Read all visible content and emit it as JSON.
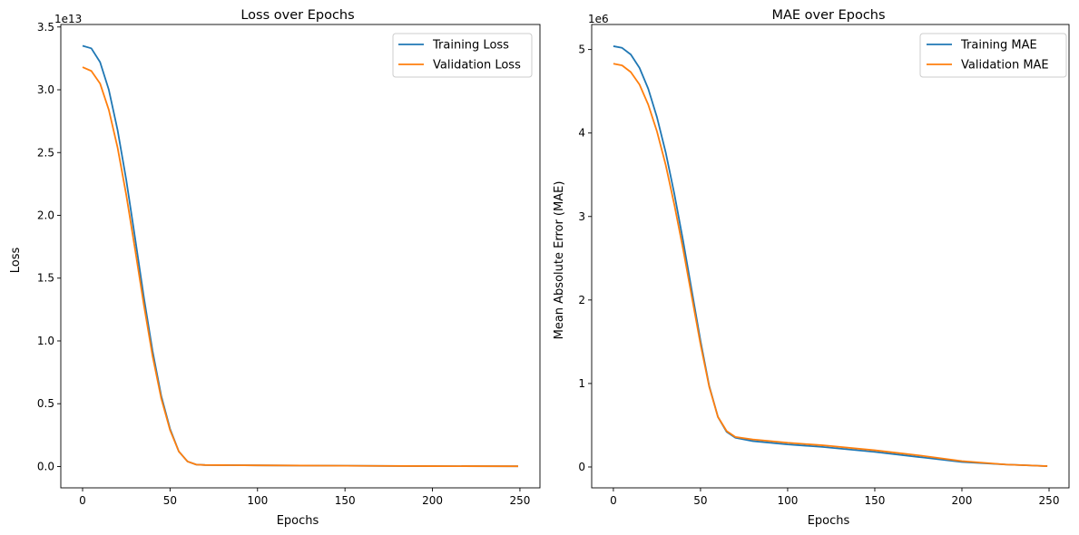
{
  "chart_data": [
    {
      "type": "line",
      "title": "Loss over Epochs",
      "xlabel": "Epochs",
      "ylabel": "Loss",
      "y_offset_label": "1e13",
      "xlim": [
        -12.45,
        261.45
      ],
      "ylim": [
        -0.17,
        3.52
      ],
      "xticks": [
        0,
        50,
        100,
        150,
        200,
        250
      ],
      "yticks": [
        0.0,
        0.5,
        1.0,
        1.5,
        2.0,
        2.5,
        3.0,
        3.5
      ],
      "ytick_labels": [
        "0.0",
        "0.5",
        "1.0",
        "1.5",
        "2.0",
        "2.5",
        "3.0",
        "3.5"
      ],
      "grid": false,
      "legend": "top-right",
      "x": [
        0,
        5,
        10,
        15,
        20,
        25,
        30,
        35,
        40,
        45,
        50,
        55,
        60,
        65,
        70,
        80,
        100,
        150,
        200,
        249
      ],
      "series": [
        {
          "name": "Training Loss",
          "color": "#1f77b4",
          "values": [
            3.35,
            3.33,
            3.22,
            3.0,
            2.68,
            2.28,
            1.82,
            1.35,
            0.92,
            0.56,
            0.3,
            0.12,
            0.04,
            0.015,
            0.012,
            0.011,
            0.009,
            0.006,
            0.003,
            0.002
          ]
        },
        {
          "name": "Validation Loss",
          "color": "#ff7f0e",
          "values": [
            3.18,
            3.15,
            3.05,
            2.84,
            2.54,
            2.16,
            1.73,
            1.29,
            0.88,
            0.54,
            0.29,
            0.12,
            0.04,
            0.015,
            0.012,
            0.011,
            0.009,
            0.006,
            0.003,
            0.002
          ]
        }
      ]
    },
    {
      "type": "line",
      "title": "MAE over Epochs",
      "xlabel": "Epochs",
      "ylabel": "Mean Absolute Error (MAE)",
      "y_offset_label": "1e6",
      "xlim": [
        -12.45,
        261.45
      ],
      "ylim": [
        -0.25,
        5.3
      ],
      "xticks": [
        0,
        50,
        100,
        150,
        200,
        250
      ],
      "yticks": [
        0,
        1,
        2,
        3,
        4,
        5
      ],
      "ytick_labels": [
        "0",
        "1",
        "2",
        "3",
        "4",
        "5"
      ],
      "grid": false,
      "legend": "top-right",
      "x": [
        0,
        5,
        10,
        15,
        20,
        25,
        30,
        35,
        40,
        45,
        50,
        55,
        60,
        65,
        70,
        80,
        100,
        120,
        150,
        175,
        200,
        225,
        249
      ],
      "series": [
        {
          "name": "Training MAE",
          "color": "#1f77b4",
          "values": [
            5.04,
            5.02,
            4.94,
            4.78,
            4.53,
            4.19,
            3.77,
            3.27,
            2.71,
            2.11,
            1.51,
            0.97,
            0.6,
            0.42,
            0.35,
            0.31,
            0.27,
            0.24,
            0.18,
            0.12,
            0.06,
            0.03,
            0.01
          ]
        },
        {
          "name": "Validation MAE",
          "color": "#ff7f0e",
          "values": [
            4.83,
            4.81,
            4.73,
            4.58,
            4.34,
            4.02,
            3.62,
            3.14,
            2.61,
            2.04,
            1.47,
            0.96,
            0.6,
            0.43,
            0.36,
            0.33,
            0.29,
            0.26,
            0.2,
            0.14,
            0.07,
            0.03,
            0.01
          ]
        }
      ]
    }
  ]
}
